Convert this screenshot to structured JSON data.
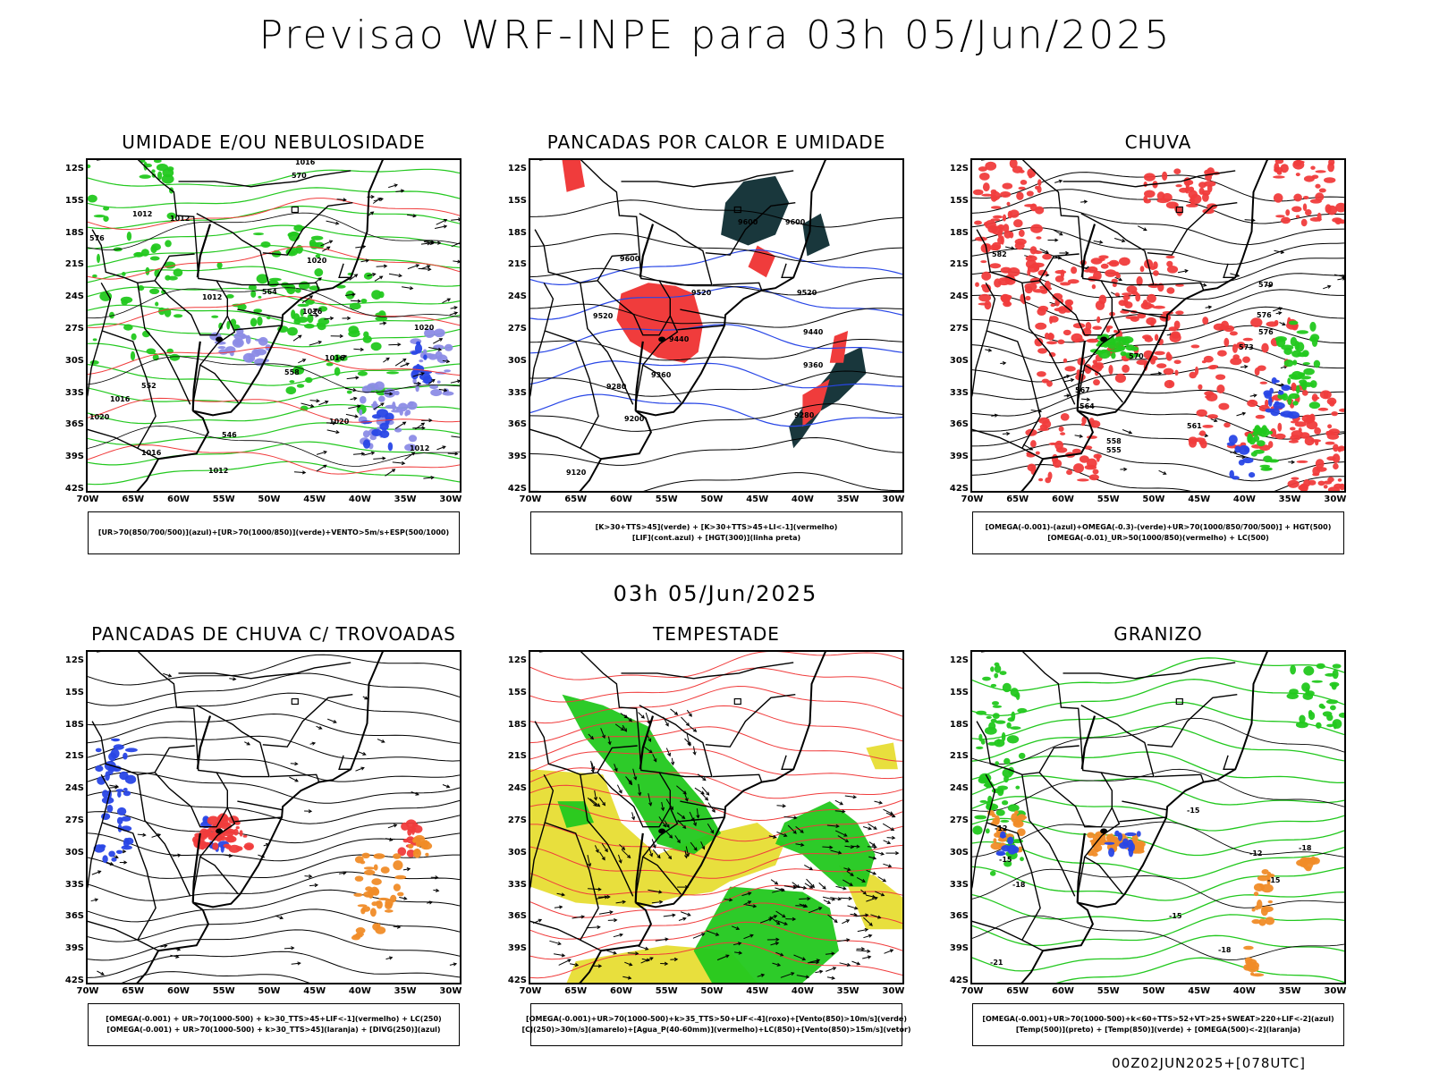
{
  "title": "Previsao WRF-INPE  para 03h 05/Jun/2025",
  "subtitle": "03h 05/Jun/2025",
  "footer": "00Z02JUN2025+[078UTC]",
  "axes": {
    "lat_labels": [
      "12S",
      "15S",
      "18S",
      "21S",
      "24S",
      "27S",
      "30S",
      "33S",
      "36S",
      "39S",
      "42S"
    ],
    "lon_labels": [
      "70W",
      "65W",
      "60W",
      "55W",
      "50W",
      "45W",
      "40W",
      "35W",
      "30W"
    ]
  },
  "colors": {
    "green": "#22c81e",
    "red": "#f03c3c",
    "blue": "#2846e6",
    "purple": "#8c8ce6",
    "dark": "#19373c",
    "yellow": "#e6dc28",
    "orange": "#f08c28"
  },
  "panels": [
    {
      "id": "umidade",
      "title": "UMIDADE E/OU NEBULOSIDADE",
      "legend": [
        "[UR>70(850/700/500)](azul)+[UR>70(1000/850)](verde)+VENTO>5m/s+ESP(500/1000)"
      ],
      "contour_labels": [
        "1016",
        "1012",
        "1012",
        "1012",
        "1020",
        "1016",
        "1016",
        "1020",
        "1012",
        "1016",
        "1020",
        "1020",
        "1016",
        "1012",
        "576",
        "570",
        "564",
        "558",
        "552",
        "546"
      ]
    },
    {
      "id": "pancadas-calor",
      "title": "PANCADAS POR CALOR E UMIDADE",
      "legend": [
        "[K>30+TTS>45](verde) + [K>30+TTS>45+LI<-1](vermelho)",
        "[LIF](cont.azul) + [HGT(300)](linha preta)"
      ],
      "contour_labels": [
        "9600",
        "9600",
        "9600",
        "9520",
        "9520",
        "9520",
        "9440",
        "9440",
        "9360",
        "9360",
        "9280",
        "9280",
        "9200",
        "9120"
      ]
    },
    {
      "id": "chuva",
      "title": "CHUVA",
      "legend": [
        "[OMEGA(-0.001)-(azul)+OMEGA(-0.3)-(verde)+UR>70(1000/850/700/500)] + HGT(500)",
        "[OMEGA(-0.01)_UR>50(1000/850)(vermelho) + LC(500)"
      ],
      "contour_labels": [
        "582",
        "579",
        "576",
        "576",
        "573",
        "570",
        "567",
        "564",
        "561",
        "558",
        "555"
      ]
    },
    {
      "id": "trovoadas",
      "title": "PANCADAS DE CHUVA C/ TROVOADAS",
      "legend": [
        "[OMEGA(-0.001) + UR>70(1000-500) + k>30_TTS>45+LIF<-1](vermelho) + LC(250)",
        "[OMEGA(-0.001) + UR>70(1000-500) + k>30_TTS>45](laranja) + [DIVG(250)](azul)"
      ],
      "contour_labels": []
    },
    {
      "id": "tempestade",
      "title": "TEMPESTADE",
      "legend": [
        "[OMEGA(-0.001)+UR>70(1000-500)+k>35_TTS>50+LIF<-4](roxo)+[Vento(850)>10m/s](verde)",
        "[CJ(250)>30m/s](amarelo)+[Agua_P(40-60mm)](vermelho)+LC(850)+[Vento(850)>15m/s](vetor)"
      ],
      "contour_labels": []
    },
    {
      "id": "granizo",
      "title": "GRANIZO",
      "legend": [
        "[OMEGA(-0.001)+UR>70(1000-500)+k<60+TTS>52+VT>25+SWEAT>220+LIF<-2](azul)",
        "[Temp(500)](preto) + [Temp(850)](verde) + [OMEGA(500)<-2](laranja)"
      ],
      "contour_labels": [
        "-15",
        "-12",
        "-12",
        "-15",
        "-18",
        "-15",
        "-18",
        "-21",
        "-18",
        "-15"
      ]
    }
  ]
}
